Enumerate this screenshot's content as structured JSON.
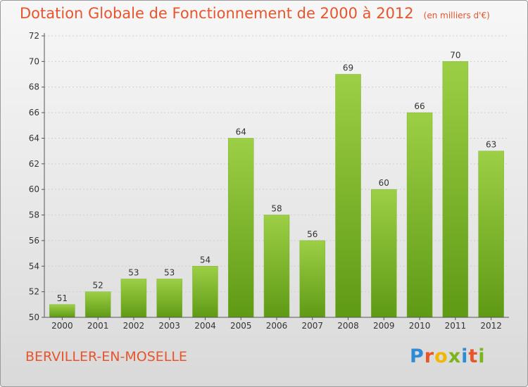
{
  "page": {
    "title": "Dotation Globale de Fonctionnement de 2000 à 2012",
    "subtitle": "(en milliers d'€)",
    "commune": "BERVILLER-EN-MOSELLE",
    "logo_letters": [
      "P",
      "r",
      "o",
      "x",
      "i",
      "t",
      "i"
    ],
    "logo_colors": [
      "#2e8bd6",
      "#e8542b",
      "#f2b705",
      "#7ab51d",
      "#2e8bd6",
      "#e8542b",
      "#7ab51d"
    ]
  },
  "colors": {
    "title": "#e8542b",
    "bar_top": "#9ccf45",
    "bar_bottom": "#5f9a15",
    "axis": "#555555",
    "grid": "#cfcfcf"
  },
  "chart_data": {
    "type": "bar",
    "title": "Dotation Globale de Fonctionnement de 2000 à 2012",
    "subtitle": "(en milliers d'€)",
    "xlabel": "",
    "ylabel": "",
    "categories": [
      "2000",
      "2001",
      "2002",
      "2003",
      "2004",
      "2005",
      "2006",
      "2007",
      "2008",
      "2009",
      "2010",
      "2011",
      "2012"
    ],
    "values": [
      51,
      52,
      53,
      53,
      54,
      64,
      58,
      56,
      69,
      60,
      66,
      70,
      63
    ],
    "ylim": [
      50,
      72
    ],
    "yticks": [
      50,
      52,
      54,
      56,
      58,
      60,
      62,
      64,
      66,
      68,
      70,
      72
    ],
    "grid": true,
    "legend": "none"
  }
}
